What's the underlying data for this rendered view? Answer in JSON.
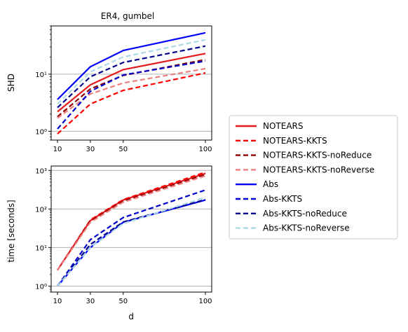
{
  "chart_data": {
    "title": "ER4, gumbel",
    "x_ticks": [
      10,
      30,
      50,
      100
    ],
    "xlabel": "d",
    "line_styles": {
      "solid": "solid",
      "dashed": "dashed"
    },
    "series_meta": [
      {
        "name": "NOTEARS",
        "color": "#e41a1c",
        "style": "solid"
      },
      {
        "name": "NOTEARS-KKTS",
        "color": "#ff0000",
        "style": "dashed"
      },
      {
        "name": "NOTEARS-KKTS-noReduce",
        "color": "#8b0000",
        "style": "dashed"
      },
      {
        "name": "NOTEARS-KKTS-noReverse",
        "color": "#f08080",
        "style": "dashed"
      },
      {
        "name": "Abs",
        "color": "#0000ff",
        "style": "solid"
      },
      {
        "name": "Abs-KKTS",
        "color": "#0000cd",
        "style": "dashed"
      },
      {
        "name": "Abs-KKTS-noReduce",
        "color": "#00008b",
        "style": "dashed"
      },
      {
        "name": "Abs-KKTS-noReverse",
        "color": "#add8e6",
        "style": "dashed"
      }
    ],
    "panels": [
      {
        "type": "line",
        "ylabel": "SHD",
        "yscale": "log",
        "ylim": [
          0.7,
          70
        ],
        "y_ticks": [
          1,
          10
        ],
        "y_tick_labels": [
          "10⁰",
          "10¹"
        ],
        "x": [
          10,
          30,
          50,
          100
        ],
        "series": [
          {
            "values": [
              2.2,
              6.5,
              12.0,
              23.0
            ]
          },
          {
            "values": [
              0.9,
              3.0,
              5.2,
              10.5
            ]
          },
          {
            "values": [
              1.8,
              5.5,
              9.5,
              18.0
            ]
          },
          {
            "values": [
              1.7,
              4.5,
              7.0,
              12.5
            ]
          },
          {
            "values": [
              3.6,
              13.5,
              26.0,
              53.0
            ]
          },
          {
            "values": [
              1.1,
              5.0,
              9.7,
              17.0
            ]
          },
          {
            "values": [
              2.6,
              9.0,
              16.0,
              31.0
            ]
          },
          {
            "values": [
              3.0,
              11.0,
              20.0,
              40.0
            ]
          }
        ]
      },
      {
        "type": "line",
        "ylabel": "time [seconds]",
        "yscale": "log",
        "ylim": [
          0.7,
          1300
        ],
        "y_ticks": [
          1,
          10,
          100,
          1000
        ],
        "y_tick_labels": [
          "10⁰",
          "10¹",
          "10²",
          "10³"
        ],
        "x": [
          10,
          30,
          50,
          100
        ],
        "series": [
          {
            "values": [
              2.6,
              50,
              170,
              830
            ]
          },
          {
            "values": [
              2.6,
              52,
              175,
              900
            ]
          },
          {
            "values": [
              2.6,
              48,
              160,
              780
            ]
          },
          {
            "values": [
              2.6,
              45,
              150,
              720
            ]
          },
          {
            "values": [
              1.0,
              10,
              45,
              170
            ]
          },
          {
            "values": [
              1.0,
              16,
              60,
              310
            ]
          },
          {
            "values": [
              1.0,
              12,
              46,
              175
            ]
          },
          {
            "values": [
              1.0,
              10,
              42,
              200
            ]
          }
        ]
      }
    ]
  }
}
